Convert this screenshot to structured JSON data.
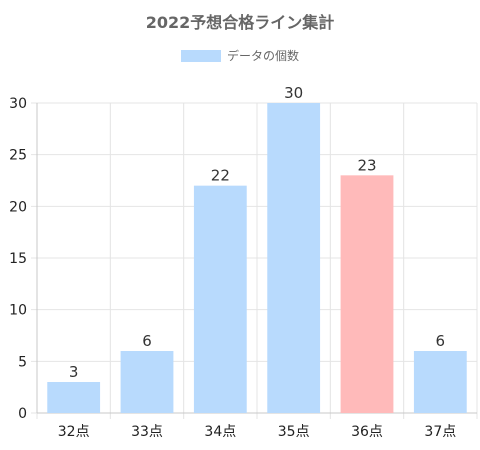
{
  "chart_data": {
    "type": "bar",
    "title": "2022予想合格ライン集計",
    "legend": {
      "position": "top",
      "entries": [
        "データの個数"
      ]
    },
    "categories": [
      "32点",
      "33点",
      "34点",
      "35点",
      "36点",
      "37点"
    ],
    "series": [
      {
        "name": "データの個数",
        "values": [
          3,
          6,
          22,
          30,
          23,
          6
        ],
        "colors": [
          "#b8dafd",
          "#b8dafd",
          "#b8dafd",
          "#b8dafd",
          "#ffbaba",
          "#b8dafd"
        ]
      }
    ],
    "ylim": [
      0,
      30
    ],
    "yticks": [
      0,
      5,
      10,
      15,
      20,
      25,
      30
    ],
    "grid": true,
    "data_labels": true
  }
}
